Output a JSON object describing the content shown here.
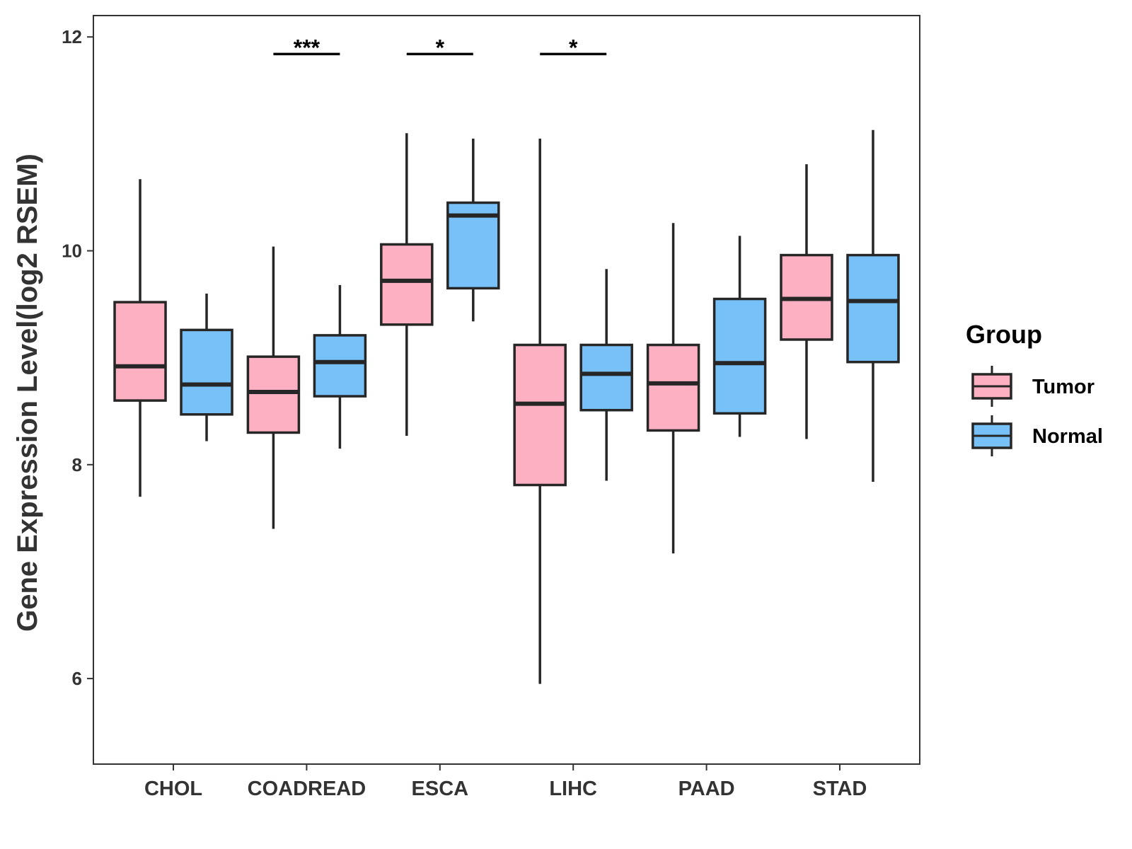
{
  "chart_data": {
    "type": "boxplot",
    "xlabel": "",
    "ylabel": "Gene Expression Level(log2 RSEM)",
    "ylim": [
      5.2,
      12.2
    ],
    "yticks": [
      6,
      8,
      10,
      12
    ],
    "categories": [
      "CHOL",
      "COADREAD",
      "ESCA",
      "LIHC",
      "PAAD",
      "STAD"
    ],
    "grid": false,
    "legend": {
      "title": "Group",
      "position": "right",
      "entries": [
        {
          "name": "Tumor",
          "color": "#FDB0C2"
        },
        {
          "name": "Normal",
          "color": "#77C1F8"
        }
      ]
    },
    "series": [
      {
        "name": "Tumor",
        "color": "#FDB0C2",
        "boxes": [
          {
            "category": "CHOL",
            "min": 7.7,
            "q1": 8.6,
            "median": 8.92,
            "q3": 9.52,
            "max": 10.67
          },
          {
            "category": "COADREAD",
            "min": 7.4,
            "q1": 8.3,
            "median": 8.68,
            "q3": 9.01,
            "max": 10.04
          },
          {
            "category": "ESCA",
            "min": 8.27,
            "q1": 9.31,
            "median": 9.72,
            "q3": 10.06,
            "max": 11.1
          },
          {
            "category": "LIHC",
            "min": 5.95,
            "q1": 7.81,
            "median": 8.57,
            "q3": 9.12,
            "max": 11.05
          },
          {
            "category": "PAAD",
            "min": 7.17,
            "q1": 8.32,
            "median": 8.76,
            "q3": 9.12,
            "max": 10.26
          },
          {
            "category": "STAD",
            "min": 8.24,
            "q1": 9.17,
            "median": 9.55,
            "q3": 9.96,
            "max": 10.81
          }
        ]
      },
      {
        "name": "Normal",
        "color": "#77C1F8",
        "boxes": [
          {
            "category": "CHOL",
            "min": 8.22,
            "q1": 8.47,
            "median": 8.75,
            "q3": 9.26,
            "max": 9.6
          },
          {
            "category": "COADREAD",
            "min": 8.15,
            "q1": 8.64,
            "median": 8.96,
            "q3": 9.21,
            "max": 9.68
          },
          {
            "category": "ESCA",
            "min": 9.34,
            "q1": 9.65,
            "median": 10.33,
            "q3": 10.45,
            "max": 11.05
          },
          {
            "category": "LIHC",
            "min": 7.85,
            "q1": 8.51,
            "median": 8.85,
            "q3": 9.12,
            "max": 9.83
          },
          {
            "category": "PAAD",
            "min": 8.26,
            "q1": 8.48,
            "median": 8.95,
            "q3": 9.55,
            "max": 10.14
          },
          {
            "category": "STAD",
            "min": 7.84,
            "q1": 8.96,
            "median": 9.53,
            "q3": 9.96,
            "max": 11.13
          }
        ]
      }
    ],
    "annotations": [
      {
        "category": "COADREAD",
        "label": "***",
        "y": 11.84
      },
      {
        "category": "ESCA",
        "label": "*",
        "y": 11.84
      },
      {
        "category": "LIHC",
        "label": "*",
        "y": 11.84
      }
    ]
  }
}
